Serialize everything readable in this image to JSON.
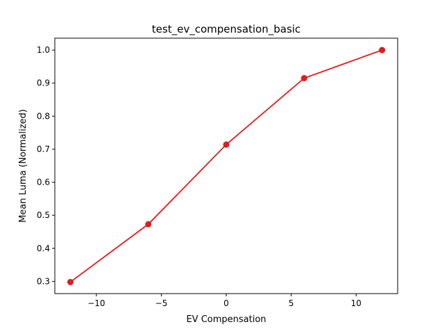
{
  "chart_data": {
    "type": "line",
    "title": "test_ev_compensation_basic",
    "xlabel": "EV Compensation",
    "ylabel": "Mean Luma (Normalized)",
    "xlim": [
      -13.2,
      13.2
    ],
    "ylim": [
      0.263,
      1.036
    ],
    "xticks": [
      -10,
      -5,
      0,
      5,
      10
    ],
    "xtick_labels": [
      "−10",
      "−5",
      "0",
      "5",
      "10"
    ],
    "yticks": [
      0.3,
      0.4,
      0.5,
      0.6,
      0.7,
      0.8,
      0.9,
      1.0
    ],
    "ytick_labels": [
      "0.3",
      "0.4",
      "0.5",
      "0.6",
      "0.7",
      "0.8",
      "0.9",
      "1.0"
    ],
    "grid": false,
    "series": [
      {
        "color": "#e41a1c",
        "marker": "circle",
        "x": [
          -12,
          -6,
          0,
          6,
          12
        ],
        "y": [
          0.298,
          0.473,
          0.714,
          0.915,
          1.0
        ]
      }
    ]
  }
}
